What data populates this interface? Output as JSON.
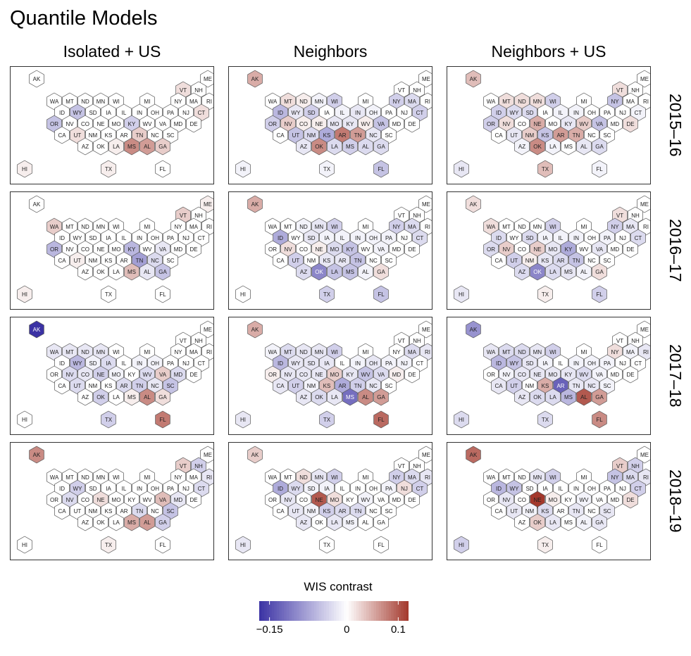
{
  "figure_title": "Quantile Models",
  "columns": [
    "Isolated + US",
    "Neighbors",
    "Neighbors + US"
  ],
  "rows": [
    "2015–16",
    "2016–17",
    "2017–18",
    "2018–19"
  ],
  "legend": {
    "title": "WIS contrast",
    "range": [
      -0.17,
      0.12
    ],
    "tick_labels": [
      "−0.15",
      "0",
      "0.1"
    ],
    "tick_values": [
      -0.15,
      0,
      0.1
    ],
    "colors": {
      "low": "#3b32a4",
      "mid": "#ffffff",
      "high": "#a3382c"
    }
  },
  "chart_data": {
    "type": "heatmap",
    "title": "Quantile Models",
    "map_type": "US state hexbin map",
    "value_label": "WIS contrast",
    "states": [
      "AK",
      "ME",
      "VT",
      "NH",
      "WA",
      "MT",
      "ND",
      "MN",
      "WI",
      "MI",
      "NY",
      "MA",
      "RI",
      "ID",
      "WY",
      "SD",
      "IA",
      "IL",
      "IN",
      "OH",
      "PA",
      "NJ",
      "CT",
      "OR",
      "NV",
      "CO",
      "NE",
      "MO",
      "KY",
      "WV",
      "VA",
      "MD",
      "DE",
      "CA",
      "UT",
      "NM",
      "KS",
      "AR",
      "TN",
      "NC",
      "SC",
      "AZ",
      "OK",
      "LA",
      "MS",
      "AL",
      "GA",
      "HI",
      "TX",
      "FL"
    ],
    "panels": [
      {
        "column": "Isolated + US",
        "row": "2015–16",
        "values": {
          "AK": 0,
          "ME": 0,
          "VT": 0.02,
          "NH": 0,
          "WA": 0,
          "MT": 0,
          "ND": 0,
          "MN": 0,
          "WI": 0,
          "MI": 0,
          "NY": 0,
          "MA": 0,
          "RI": 0,
          "ID": 0,
          "WY": -0.05,
          "SD": 0,
          "IA": 0,
          "IL": 0,
          "IN": 0,
          "OH": 0,
          "PA": 0,
          "NJ": 0,
          "CT": 0.02,
          "OR": -0.05,
          "NV": 0,
          "CO": 0,
          "NE": 0,
          "MO": 0,
          "KY": -0.04,
          "WV": 0,
          "VA": 0,
          "MD": 0,
          "DE": 0,
          "CA": 0,
          "UT": 0.02,
          "NM": 0,
          "KS": 0,
          "AR": 0,
          "TN": 0.03,
          "NC": 0,
          "SC": 0,
          "AZ": 0,
          "OK": 0,
          "LA": 0.01,
          "MS": 0.07,
          "AL": 0.06,
          "GA": 0.03,
          "HI": 0.01,
          "TX": 0.01,
          "FL": 0
        }
      },
      {
        "column": "Neighbors",
        "row": "2015–16",
        "values": {
          "AK": 0.05,
          "ME": 0,
          "VT": 0,
          "NH": 0,
          "WA": 0,
          "MT": 0.02,
          "ND": 0.01,
          "MN": -0.01,
          "WI": -0.04,
          "MI": 0,
          "NY": -0.04,
          "MA": -0.03,
          "RI": 0,
          "ID": -0.06,
          "WY": -0.02,
          "SD": -0.04,
          "IA": 0,
          "IL": -0.01,
          "IN": -0.02,
          "OH": -0.01,
          "PA": 0,
          "NJ": 0,
          "CT": -0.04,
          "OR": -0.04,
          "NV": 0.03,
          "CO": 0.01,
          "NE": 0.01,
          "MO": -0.02,
          "KY": -0.02,
          "WV": 0.01,
          "VA": -0.05,
          "MD": 0,
          "DE": 0,
          "CA": 0,
          "UT": -0.05,
          "NM": -0.03,
          "KS": -0.07,
          "AR": 0.08,
          "TN": 0.06,
          "NC": -0.02,
          "SC": 0,
          "AZ": -0.02,
          "OK": 0.07,
          "LA": -0.03,
          "MS": -0.04,
          "AL": -0.03,
          "GA": -0.03,
          "HI": -0.01,
          "TX": -0.01,
          "FL": -0.05
        }
      },
      {
        "column": "Neighbors + US",
        "row": "2015–16",
        "values": {
          "AK": 0.04,
          "ME": 0,
          "VT": 0.02,
          "NH": 0,
          "WA": 0,
          "MT": 0.02,
          "ND": 0.02,
          "MN": 0.02,
          "WI": -0.04,
          "MI": 0,
          "NY": -0.05,
          "MA": 0,
          "RI": 0,
          "ID": -0.04,
          "WY": -0.03,
          "SD": -0.03,
          "IA": 0,
          "IL": -0.01,
          "IN": -0.01,
          "OH": 0,
          "PA": 0,
          "NJ": 0,
          "CT": -0.01,
          "OR": -0.04,
          "NV": 0.02,
          "CO": 0,
          "NE": 0.05,
          "MO": 0,
          "KY": -0.02,
          "WV": 0.03,
          "VA": -0.05,
          "MD": 0,
          "DE": 0.02,
          "CA": 0,
          "UT": -0.02,
          "NM": 0.03,
          "KS": -0.05,
          "AR": 0.06,
          "TN": 0.05,
          "NC": 0,
          "SC": 0,
          "AZ": -0.01,
          "OK": 0.07,
          "LA": -0.01,
          "MS": 0,
          "AL": -0.02,
          "GA": -0.03,
          "HI": -0.02,
          "TX": 0.04,
          "FL": -0.01
        }
      },
      {
        "column": "Isolated + US",
        "row": "2016–17",
        "values": {
          "AK": 0,
          "ME": 0.01,
          "VT": 0.03,
          "NH": 0,
          "WA": 0.03,
          "MT": 0,
          "ND": 0,
          "MN": 0,
          "WI": 0,
          "MI": 0,
          "NY": 0,
          "MA": 0,
          "RI": 0,
          "ID": 0,
          "WY": 0,
          "SD": 0,
          "IA": 0,
          "IL": 0,
          "IN": 0,
          "OH": 0,
          "PA": 0,
          "NJ": 0,
          "CT": 0,
          "OR": -0.06,
          "NV": 0,
          "CO": 0,
          "NE": 0,
          "MO": 0,
          "KY": -0.06,
          "WV": 0,
          "VA": -0.02,
          "MD": 0,
          "DE": 0,
          "CA": 0,
          "UT": 0.01,
          "NM": 0,
          "KS": 0,
          "AR": 0,
          "TN": -0.08,
          "NC": -0.03,
          "SC": 0,
          "AZ": 0,
          "OK": 0,
          "LA": 0,
          "MS": 0.04,
          "AL": -0.02,
          "GA": -0.05,
          "HI": 0.01,
          "TX": 0,
          "FL": 0
        }
      },
      {
        "column": "Neighbors",
        "row": "2016–17",
        "values": {
          "AK": 0.05,
          "ME": 0,
          "VT": 0,
          "NH": 0,
          "WA": 0,
          "MT": 0,
          "ND": -0.01,
          "MN": -0.02,
          "WI": -0.04,
          "MI": 0,
          "NY": -0.04,
          "MA": -0.03,
          "RI": 0,
          "ID": -0.07,
          "WY": 0,
          "SD": -0.02,
          "IA": -0.01,
          "IL": -0.01,
          "IN": -0.01,
          "OH": -0.01,
          "PA": -0.01,
          "NJ": 0,
          "CT": -0.03,
          "OR": 0,
          "NV": 0.02,
          "CO": 0,
          "NE": 0.01,
          "MO": -0.03,
          "KY": -0.05,
          "WV": 0,
          "VA": -0.01,
          "MD": 0,
          "DE": 0,
          "CA": 0,
          "UT": -0.04,
          "NM": 0,
          "KS": -0.02,
          "AR": -0.02,
          "TN": -0.05,
          "NC": 0,
          "SC": 0,
          "AZ": -0.03,
          "OK": -0.1,
          "LA": -0.05,
          "MS": -0.05,
          "AL": -0.01,
          "GA": 0.02,
          "HI": 0,
          "TX": -0.04,
          "FL": -0.05
        }
      },
      {
        "column": "Neighbors + US",
        "row": "2016–17",
        "values": {
          "AK": 0.02,
          "ME": 0,
          "VT": 0.02,
          "NH": 0,
          "WA": 0.02,
          "MT": 0,
          "ND": 0,
          "MN": 0,
          "WI": -0.04,
          "MI": 0,
          "NY": -0.04,
          "MA": -0.02,
          "RI": 0,
          "ID": -0.03,
          "WY": 0,
          "SD": -0.03,
          "IA": -0.01,
          "IL": -0.01,
          "IN": -0.01,
          "OH": 0,
          "PA": -0.01,
          "NJ": 0,
          "CT": -0.03,
          "OR": -0.03,
          "NV": 0.03,
          "CO": 0,
          "NE": 0.03,
          "MO": -0.02,
          "KY": -0.07,
          "WV": 0,
          "VA": -0.02,
          "MD": 0,
          "DE": 0,
          "CA": 0,
          "UT": -0.04,
          "NM": 0.01,
          "KS": -0.02,
          "AR": -0.03,
          "TN": -0.05,
          "NC": 0,
          "SC": 0,
          "AZ": -0.03,
          "OK": -0.1,
          "LA": -0.03,
          "MS": -0.02,
          "AL": -0.01,
          "GA": 0.02,
          "HI": -0.02,
          "TX": 0.01,
          "FL": -0.04
        }
      },
      {
        "column": "Isolated + US",
        "row": "2017–18",
        "values": {
          "AK": -0.17,
          "ME": 0,
          "VT": 0,
          "NH": 0,
          "WA": -0.02,
          "MT": -0.02,
          "ND": -0.02,
          "MN": -0.02,
          "WI": 0,
          "MI": 0,
          "NY": 0,
          "MA": 0,
          "RI": 0,
          "ID": 0,
          "WY": -0.06,
          "SD": -0.01,
          "IA": -0.03,
          "IL": 0,
          "IN": -0.01,
          "OH": -0.01,
          "PA": 0,
          "NJ": 0,
          "CT": 0,
          "OR": 0,
          "NV": -0.03,
          "CO": -0.02,
          "NE": -0.04,
          "MO": -0.01,
          "KY": 0,
          "WV": -0.03,
          "VA": 0.03,
          "MD": -0.03,
          "DE": 0,
          "CA": 0,
          "UT": -0.03,
          "NM": 0,
          "KS": 0,
          "AR": -0.03,
          "TN": -0.04,
          "NC": -0.02,
          "SC": -0.05,
          "AZ": 0,
          "OK": -0.04,
          "LA": 0,
          "MS": 0.01,
          "AL": 0.07,
          "GA": 0.02,
          "HI": 0,
          "TX": -0.04,
          "FL": 0.08
        }
      },
      {
        "column": "Neighbors",
        "row": "2017–18",
        "values": {
          "AK": 0.05,
          "ME": 0,
          "VT": 0,
          "NH": 0,
          "WA": -0.01,
          "MT": -0.03,
          "ND": -0.02,
          "MN": -0.02,
          "WI": -0.04,
          "MI": 0,
          "NY": 0,
          "MA": -0.03,
          "RI": -0.02,
          "ID": -0.06,
          "WY": -0.02,
          "SD": -0.02,
          "IA": -0.02,
          "IL": 0,
          "IN": -0.01,
          "OH": -0.02,
          "PA": -0.01,
          "NJ": -0.01,
          "CT": 0,
          "OR": 0.01,
          "NV": -0.02,
          "CO": -0.02,
          "NE": -0.02,
          "MO": 0.03,
          "KY": -0.02,
          "WV": -0.05,
          "VA": -0.03,
          "MD": 0.01,
          "DE": 0,
          "CA": -0.02,
          "UT": -0.04,
          "NM": -0.01,
          "KS": 0.04,
          "AR": -0.07,
          "TN": -0.04,
          "NC": -0.02,
          "SC": 0,
          "AZ": -0.02,
          "OK": -0.03,
          "LA": -0.02,
          "MS": -0.12,
          "AL": 0.07,
          "GA": 0.06,
          "HI": -0.02,
          "TX": -0.04,
          "FL": 0.09
        }
      },
      {
        "column": "Neighbors + US",
        "row": "2017–18",
        "values": {
          "AK": -0.09,
          "ME": 0,
          "VT": 0,
          "NH": 0,
          "WA": -0.02,
          "MT": -0.03,
          "ND": -0.03,
          "MN": -0.02,
          "WI": -0.04,
          "MI": 0,
          "NY": 0.02,
          "MA": -0.01,
          "RI": -0.02,
          "ID": -0.06,
          "WY": -0.05,
          "SD": -0.02,
          "IA": -0.01,
          "IL": 0,
          "IN": -0.01,
          "OH": -0.01,
          "PA": -0.01,
          "NJ": 0,
          "CT": 0,
          "OR": 0,
          "NV": -0.01,
          "CO": -0.02,
          "NE": -0.02,
          "MO": -0.02,
          "KY": -0.02,
          "WV": -0.03,
          "VA": -0.01,
          "MD": 0,
          "DE": 0,
          "CA": -0.02,
          "UT": -0.04,
          "NM": 0,
          "KS": 0.05,
          "AR": -0.13,
          "TN": -0.02,
          "NC": -0.02,
          "SC": -0.01,
          "AZ": -0.02,
          "OK": -0.03,
          "LA": -0.03,
          "MS": -0.06,
          "AL": 0.1,
          "GA": 0.06,
          "HI": -0.03,
          "TX": -0.03,
          "FL": 0.07
        }
      },
      {
        "column": "Isolated + US",
        "row": "2018–19",
        "values": {
          "AK": 0.07,
          "ME": 0,
          "VT": 0.03,
          "NH": -0.04,
          "WA": 0,
          "MT": 0,
          "ND": 0,
          "MN": 0,
          "WI": 0,
          "MI": 0,
          "NY": 0,
          "MA": 0,
          "RI": -0.02,
          "ID": 0,
          "WY": -0.04,
          "SD": 0,
          "IA": 0,
          "IL": 0,
          "IN": 0,
          "OH": 0,
          "PA": 0,
          "NJ": 0,
          "CT": -0.03,
          "OR": 0,
          "NV": -0.03,
          "CO": 0,
          "NE": 0.02,
          "MO": 0,
          "KY": 0,
          "WV": 0,
          "VA": 0.04,
          "MD": -0.02,
          "DE": 0,
          "CA": 0,
          "UT": 0,
          "NM": 0,
          "KS": 0,
          "AR": 0,
          "TN": -0.03,
          "NC": 0,
          "SC": -0.05,
          "AZ": 0,
          "OK": 0,
          "LA": 0,
          "MS": 0.05,
          "AL": 0.06,
          "GA": -0.04,
          "HI": 0,
          "TX": 0.01,
          "FL": 0
        }
      },
      {
        "column": "Neighbors",
        "row": "2018–19",
        "values": {
          "AK": 0.03,
          "ME": 0,
          "VT": 0,
          "NH": 0,
          "WA": 0,
          "MT": 0,
          "ND": 0.02,
          "MN": -0.02,
          "WI": -0.04,
          "MI": 0,
          "NY": -0.04,
          "MA": -0.03,
          "RI": -0.02,
          "ID": -0.07,
          "WY": -0.03,
          "SD": -0.01,
          "IA": -0.01,
          "IL": 0,
          "IN": 0,
          "OH": 0,
          "PA": -0.01,
          "NJ": 0.02,
          "CT": -0.04,
          "OR": 0,
          "NV": -0.02,
          "CO": 0,
          "NE": 0.1,
          "MO": 0.02,
          "KY": 0,
          "WV": -0.01,
          "VA": 0,
          "MD": 0,
          "DE": 0,
          "CA": 0,
          "UT": -0.02,
          "NM": -0.01,
          "KS": -0.04,
          "AR": -0.03,
          "TN": -0.03,
          "NC": 0,
          "SC": 0,
          "AZ": -0.02,
          "OK": 0,
          "LA": -0.02,
          "MS": -0.01,
          "AL": 0,
          "GA": 0,
          "HI": -0.02,
          "TX": 0,
          "FL": 0
        }
      },
      {
        "column": "Neighbors + US",
        "row": "2018–19",
        "values": {
          "AK": 0.09,
          "ME": 0,
          "VT": 0.03,
          "NH": -0.04,
          "WA": 0,
          "MT": 0,
          "ND": 0,
          "MN": -0.02,
          "WI": -0.04,
          "MI": 0,
          "NY": -0.05,
          "MA": -0.03,
          "RI": -0.02,
          "ID": -0.06,
          "WY": -0.05,
          "SD": 0,
          "IA": 0,
          "IL": 0,
          "IN": 0,
          "OH": 0,
          "PA": 0,
          "NJ": 0,
          "CT": -0.04,
          "OR": 0,
          "NV": -0.02,
          "CO": 0,
          "NE": 0.12,
          "MO": 0.01,
          "KY": 0,
          "WV": -0.01,
          "VA": 0,
          "MD": 0,
          "DE": 0.02,
          "CA": 0,
          "UT": -0.02,
          "NM": -0.01,
          "KS": -0.03,
          "AR": 0,
          "TN": -0.02,
          "NC": 0,
          "SC": -0.02,
          "AZ": 0,
          "OK": 0.03,
          "LA": -0.02,
          "MS": 0,
          "AL": -0.01,
          "GA": -0.02,
          "HI": -0.04,
          "TX": 0.01,
          "FL": 0
        }
      }
    ]
  }
}
